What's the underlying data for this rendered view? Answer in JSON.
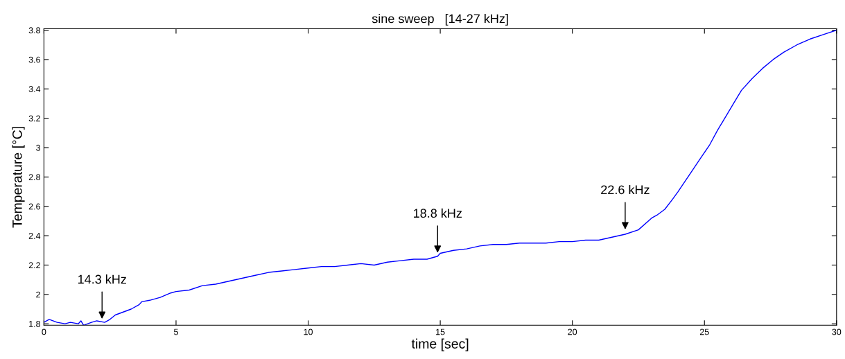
{
  "chart_data": {
    "type": "line",
    "title": "sine sweep   [14-27 kHz]",
    "xlabel": "time [sec]",
    "ylabel": "Temperature [°C]",
    "x": [
      0,
      0.2,
      0.5,
      0.8,
      1.0,
      1.3,
      1.4,
      1.5,
      1.8,
      2.0,
      2.3,
      2.5,
      2.7,
      3.0,
      3.3,
      3.6,
      3.7,
      4.0,
      4.4,
      4.8,
      5.0,
      5.5,
      6.0,
      6.5,
      7.0,
      7.5,
      8.0,
      8.5,
      9.0,
      9.5,
      10,
      10.5,
      11,
      11.5,
      12,
      12.5,
      13,
      13.5,
      14,
      14.5,
      14.9,
      15.0,
      15.5,
      16,
      16.5,
      17,
      17.5,
      18,
      18.5,
      19,
      19.5,
      20,
      20.5,
      21,
      21.5,
      22,
      22.5,
      23.0,
      23.2,
      23.5,
      23.8,
      24,
      24.3,
      24.6,
      24.9,
      25.2,
      25.5,
      25.8,
      26.1,
      26.4,
      26.8,
      27.2,
      27.6,
      28,
      28.5,
      29,
      29.5,
      30
    ],
    "series": [
      {
        "color": "#0000ff",
        "values": [
          1.81,
          1.83,
          1.81,
          1.8,
          1.81,
          1.8,
          1.82,
          1.79,
          1.81,
          1.82,
          1.81,
          1.83,
          1.86,
          1.88,
          1.9,
          1.93,
          1.95,
          1.96,
          1.98,
          2.01,
          2.02,
          2.03,
          2.06,
          2.07,
          2.09,
          2.11,
          2.13,
          2.15,
          2.16,
          2.17,
          2.18,
          2.19,
          2.19,
          2.2,
          2.21,
          2.2,
          2.22,
          2.23,
          2.24,
          2.24,
          2.26,
          2.28,
          2.3,
          2.31,
          2.33,
          2.34,
          2.34,
          2.35,
          2.35,
          2.35,
          2.36,
          2.36,
          2.37,
          2.37,
          2.39,
          2.41,
          2.44,
          2.52,
          2.54,
          2.58,
          2.65,
          2.7,
          2.78,
          2.86,
          2.94,
          3.02,
          3.12,
          3.21,
          3.3,
          3.39,
          3.47,
          3.54,
          3.6,
          3.65,
          3.7,
          3.74,
          3.77,
          3.8
        ]
      }
    ],
    "annotations": [
      {
        "text": "14.3 kHz",
        "x": 2.2,
        "y": 1.82
      },
      {
        "text": "18.8 kHz",
        "x": 14.9,
        "y": 2.27
      },
      {
        "text": "22.6 kHz",
        "x": 22.0,
        "y": 2.43
      }
    ],
    "xlim": [
      0,
      30
    ],
    "xticks": [
      0,
      5,
      10,
      15,
      20,
      25,
      30
    ],
    "ylim": [
      1.79,
      3.81
    ],
    "yticks": [
      1.8,
      2,
      2.2,
      2.4,
      2.6,
      2.8,
      3,
      3.2,
      3.4,
      3.6,
      3.8
    ],
    "grid": false,
    "legend": false
  }
}
